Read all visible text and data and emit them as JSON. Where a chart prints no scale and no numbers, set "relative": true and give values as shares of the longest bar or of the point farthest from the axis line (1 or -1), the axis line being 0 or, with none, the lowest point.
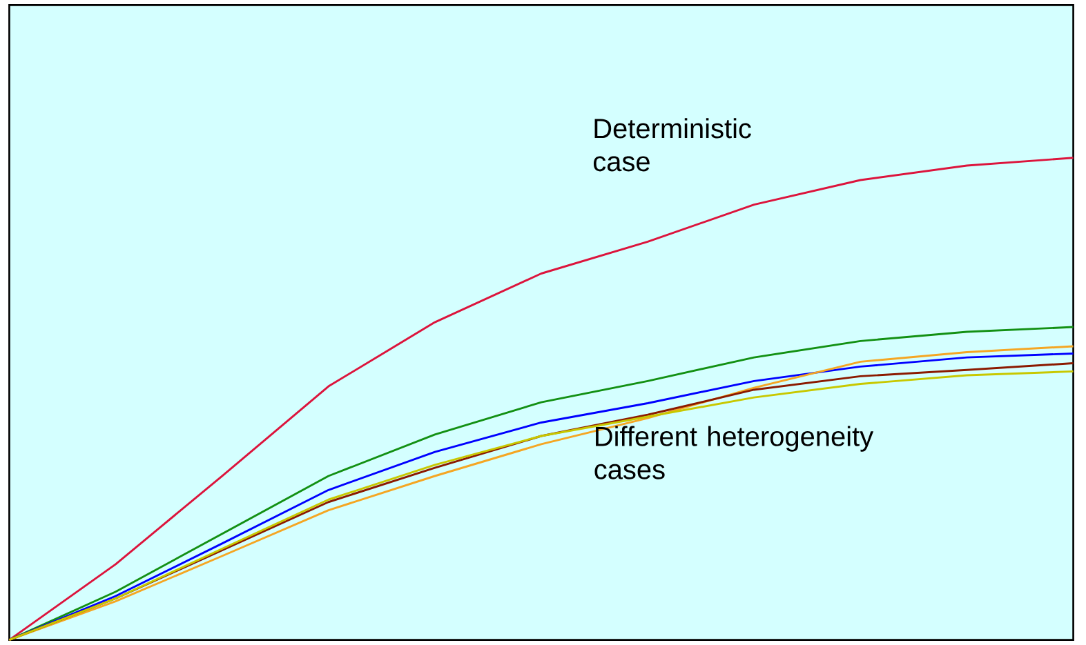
{
  "chart_data": {
    "type": "line",
    "relative": true,
    "categories": [
      null,
      null,
      null,
      null,
      null,
      null,
      null,
      null,
      null,
      null,
      null
    ],
    "series": [
      {
        "color": "#dc143c",
        "values": [
          0,
          0.157,
          0.34,
          0.526,
          0.659,
          0.76,
          0.826,
          0.903,
          0.954,
          0.984,
          1
        ]
      },
      {
        "color": "#139013",
        "values": [
          0,
          0.1,
          0.22,
          0.34,
          0.426,
          0.493,
          0.537,
          0.586,
          0.62,
          0.639,
          0.649
        ]
      },
      {
        "color": "#0000ff",
        "values": [
          0,
          0.091,
          0.2,
          0.311,
          0.39,
          0.451,
          0.491,
          0.537,
          0.567,
          0.586,
          0.594
        ]
      },
      {
        "color": "#f5a623",
        "values": [
          0,
          0.08,
          0.174,
          0.269,
          0.34,
          0.406,
          0.46,
          0.523,
          0.577,
          0.597,
          0.609
        ]
      },
      {
        "color": "#8b1a00",
        "values": [
          0,
          0.086,
          0.186,
          0.286,
          0.357,
          0.423,
          0.467,
          0.519,
          0.547,
          0.56,
          0.574
        ]
      },
      {
        "color": "#c8c800",
        "values": [
          0,
          0.086,
          0.189,
          0.291,
          0.363,
          0.423,
          0.463,
          0.503,
          0.531,
          0.549,
          0.557
        ]
      }
    ],
    "annotations": [
      "Deterministic case",
      "Different heterogeneity cases"
    ],
    "marker": "none",
    "line_style": "solid"
  }
}
